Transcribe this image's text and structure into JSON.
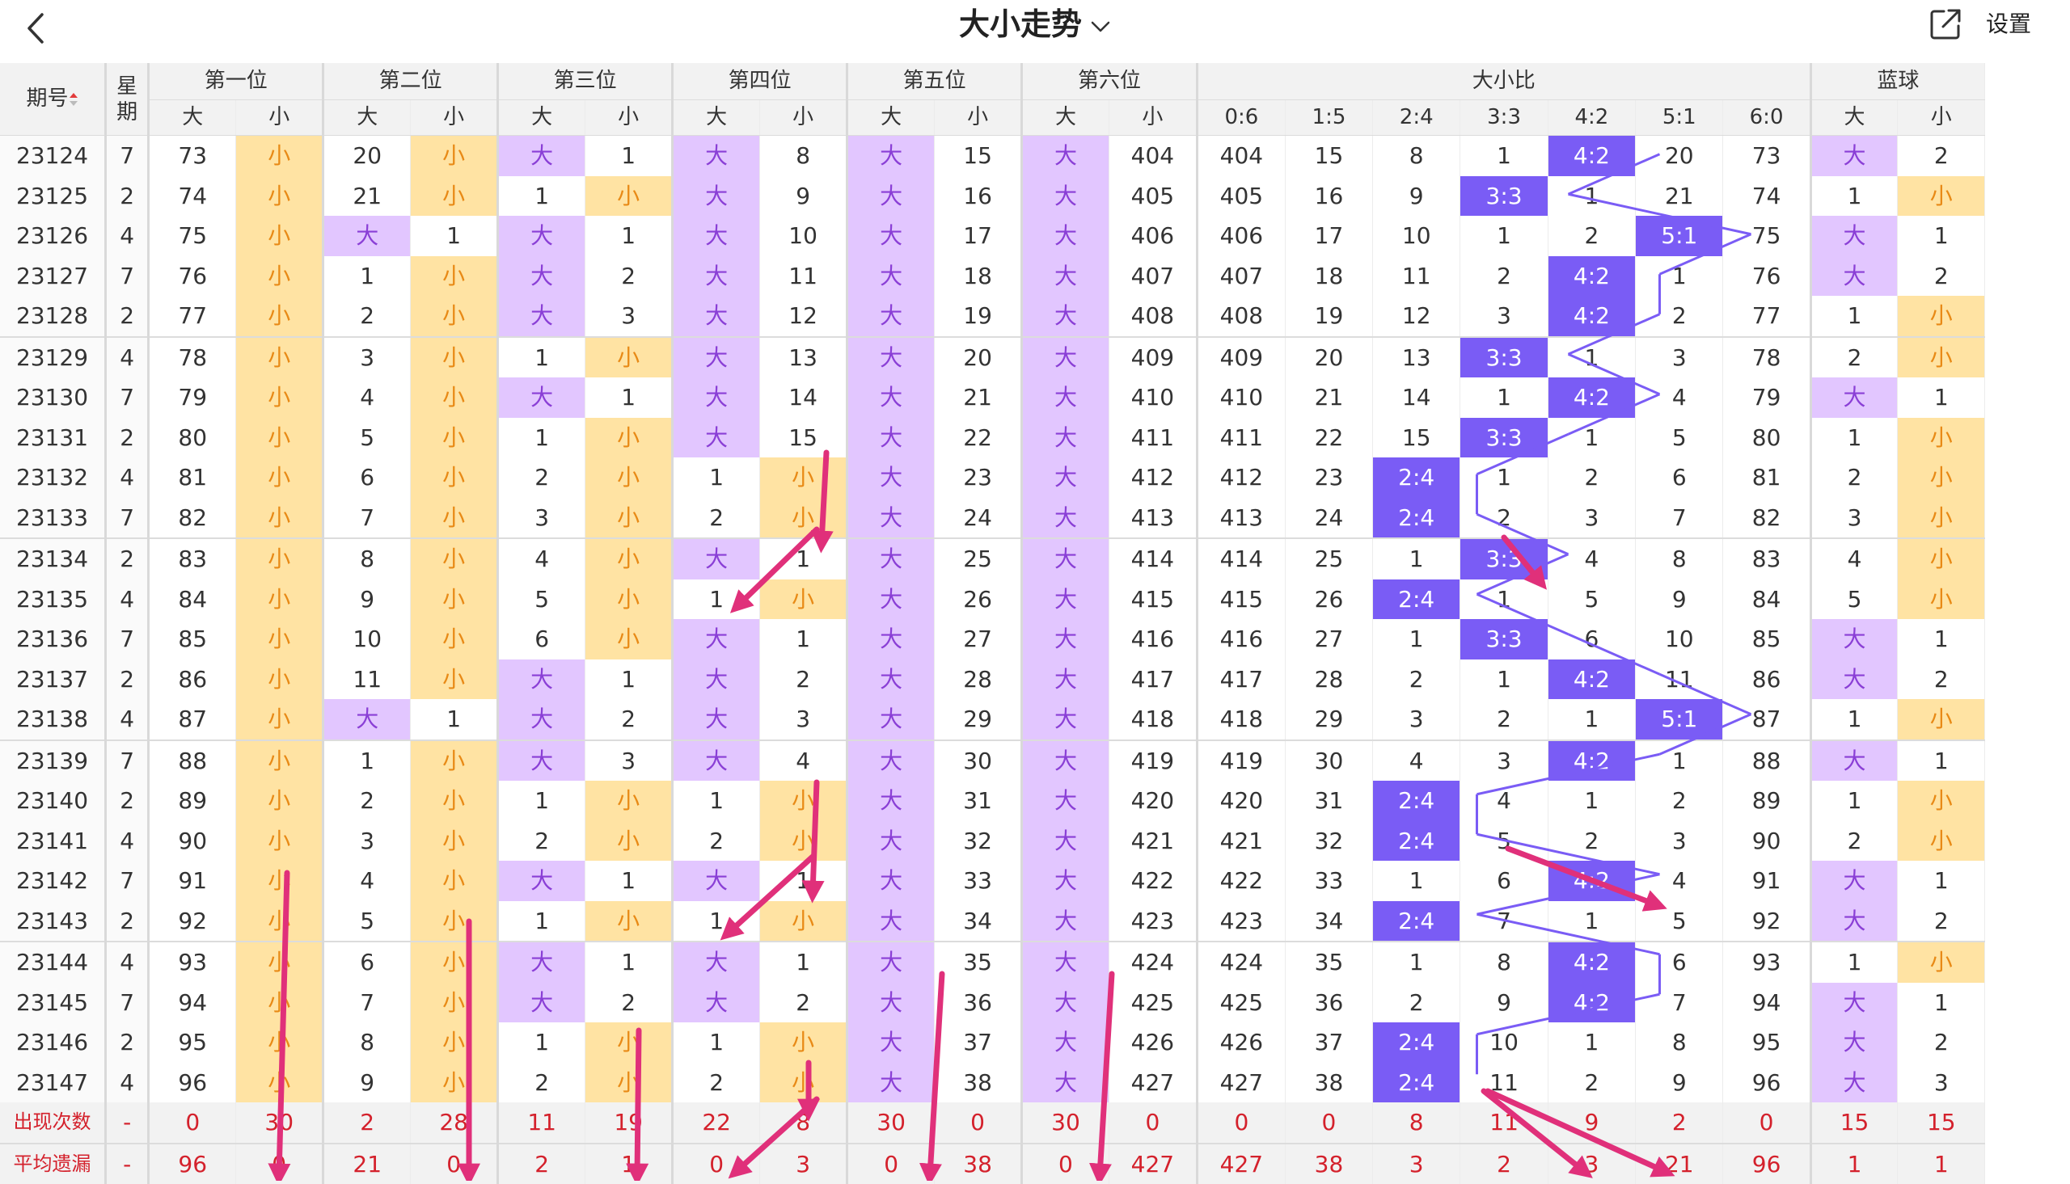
{
  "header": {
    "title": "大小走势",
    "setting_label": "设置"
  },
  "colors": {
    "big": "#e2c6ff",
    "small": "#ffe3a3",
    "hit": "#7a5cf5",
    "stat_red": "#d4212c",
    "arrow": "#e0307a"
  },
  "table": {
    "col_period": "期号",
    "col_week": "星期",
    "positions": [
      "第一位",
      "第二位",
      "第三位",
      "第四位",
      "第五位",
      "第六位"
    ],
    "ratio_group": "大小比",
    "blue_group": "蓝球",
    "big_label": "大",
    "small_label": "小",
    "ratio_cols": [
      "0:6",
      "1:5",
      "2:4",
      "3:3",
      "4:2",
      "5:1",
      "6:0"
    ],
    "rows": [
      {
        "p": "23124",
        "w": "7",
        "pos": [
          "73",
          "S",
          "20",
          "S",
          "B",
          "1",
          "B",
          "8",
          "B",
          "15",
          "B",
          "404"
        ],
        "ratio": [
          "404",
          "15",
          "8",
          "1",
          "4:2",
          "20",
          "73"
        ],
        "blue": [
          "B",
          "2"
        ]
      },
      {
        "p": "23125",
        "w": "2",
        "pos": [
          "74",
          "S",
          "21",
          "S",
          "1",
          "S",
          "B",
          "9",
          "B",
          "16",
          "B",
          "405"
        ],
        "ratio": [
          "405",
          "16",
          "9",
          "3:3",
          "1",
          "21",
          "74"
        ],
        "blue": [
          "1",
          "S"
        ]
      },
      {
        "p": "23126",
        "w": "4",
        "pos": [
          "75",
          "S",
          "B",
          "1",
          "B",
          "1",
          "B",
          "10",
          "B",
          "17",
          "B",
          "406"
        ],
        "ratio": [
          "406",
          "17",
          "10",
          "1",
          "2",
          "5:1",
          "75"
        ],
        "blue": [
          "B",
          "1"
        ]
      },
      {
        "p": "23127",
        "w": "7",
        "pos": [
          "76",
          "S",
          "1",
          "S",
          "B",
          "2",
          "B",
          "11",
          "B",
          "18",
          "B",
          "407"
        ],
        "ratio": [
          "407",
          "18",
          "11",
          "2",
          "4:2",
          "1",
          "76"
        ],
        "blue": [
          "B",
          "2"
        ]
      },
      {
        "p": "23128",
        "w": "2",
        "pos": [
          "77",
          "S",
          "2",
          "S",
          "B",
          "3",
          "B",
          "12",
          "B",
          "19",
          "B",
          "408"
        ],
        "ratio": [
          "408",
          "19",
          "12",
          "3",
          "4:2",
          "2",
          "77"
        ],
        "blue": [
          "1",
          "S"
        ]
      },
      {
        "p": "23129",
        "w": "4",
        "pos": [
          "78",
          "S",
          "3",
          "S",
          "1",
          "S",
          "B",
          "13",
          "B",
          "20",
          "B",
          "409"
        ],
        "ratio": [
          "409",
          "20",
          "13",
          "3:3",
          "1",
          "3",
          "78"
        ],
        "blue": [
          "2",
          "S"
        ]
      },
      {
        "p": "23130",
        "w": "7",
        "pos": [
          "79",
          "S",
          "4",
          "S",
          "B",
          "1",
          "B",
          "14",
          "B",
          "21",
          "B",
          "410"
        ],
        "ratio": [
          "410",
          "21",
          "14",
          "1",
          "4:2",
          "4",
          "79"
        ],
        "blue": [
          "B",
          "1"
        ]
      },
      {
        "p": "23131",
        "w": "2",
        "pos": [
          "80",
          "S",
          "5",
          "S",
          "1",
          "S",
          "B",
          "15",
          "B",
          "22",
          "B",
          "411"
        ],
        "ratio": [
          "411",
          "22",
          "15",
          "3:3",
          "1",
          "5",
          "80"
        ],
        "blue": [
          "1",
          "S"
        ]
      },
      {
        "p": "23132",
        "w": "4",
        "pos": [
          "81",
          "S",
          "6",
          "S",
          "2",
          "S",
          "1",
          "S",
          "B",
          "23",
          "B",
          "412"
        ],
        "ratio": [
          "412",
          "23",
          "2:4",
          "1",
          "2",
          "6",
          "81"
        ],
        "blue": [
          "2",
          "S"
        ]
      },
      {
        "p": "23133",
        "w": "7",
        "pos": [
          "82",
          "S",
          "7",
          "S",
          "3",
          "S",
          "2",
          "S",
          "B",
          "24",
          "B",
          "413"
        ],
        "ratio": [
          "413",
          "24",
          "2:4",
          "2",
          "3",
          "7",
          "82"
        ],
        "blue": [
          "3",
          "S"
        ]
      },
      {
        "p": "23134",
        "w": "2",
        "pos": [
          "83",
          "S",
          "8",
          "S",
          "4",
          "S",
          "B",
          "1",
          "B",
          "25",
          "B",
          "414"
        ],
        "ratio": [
          "414",
          "25",
          "1",
          "3:3",
          "4",
          "8",
          "83"
        ],
        "blue": [
          "4",
          "S"
        ]
      },
      {
        "p": "23135",
        "w": "4",
        "pos": [
          "84",
          "S",
          "9",
          "S",
          "5",
          "S",
          "1",
          "S",
          "B",
          "26",
          "B",
          "415"
        ],
        "ratio": [
          "415",
          "26",
          "2:4",
          "1",
          "5",
          "9",
          "84"
        ],
        "blue": [
          "5",
          "S"
        ]
      },
      {
        "p": "23136",
        "w": "7",
        "pos": [
          "85",
          "S",
          "10",
          "S",
          "6",
          "S",
          "B",
          "1",
          "B",
          "27",
          "B",
          "416"
        ],
        "ratio": [
          "416",
          "27",
          "1",
          "3:3",
          "6",
          "10",
          "85"
        ],
        "blue": [
          "B",
          "1"
        ]
      },
      {
        "p": "23137",
        "w": "2",
        "pos": [
          "86",
          "S",
          "11",
          "S",
          "B",
          "1",
          "B",
          "2",
          "B",
          "28",
          "B",
          "417"
        ],
        "ratio": [
          "417",
          "28",
          "2",
          "1",
          "4:2",
          "11",
          "86"
        ],
        "blue": [
          "B",
          "2"
        ]
      },
      {
        "p": "23138",
        "w": "4",
        "pos": [
          "87",
          "S",
          "B",
          "1",
          "B",
          "2",
          "B",
          "3",
          "B",
          "29",
          "B",
          "418"
        ],
        "ratio": [
          "418",
          "29",
          "3",
          "2",
          "1",
          "5:1",
          "87"
        ],
        "blue": [
          "1",
          "S"
        ]
      },
      {
        "p": "23139",
        "w": "7",
        "pos": [
          "88",
          "S",
          "1",
          "S",
          "B",
          "3",
          "B",
          "4",
          "B",
          "30",
          "B",
          "419"
        ],
        "ratio": [
          "419",
          "30",
          "4",
          "3",
          "4:2",
          "1",
          "88"
        ],
        "blue": [
          "B",
          "1"
        ]
      },
      {
        "p": "23140",
        "w": "2",
        "pos": [
          "89",
          "S",
          "2",
          "S",
          "1",
          "S",
          "1",
          "S",
          "B",
          "31",
          "B",
          "420"
        ],
        "ratio": [
          "420",
          "31",
          "2:4",
          "4",
          "1",
          "2",
          "89"
        ],
        "blue": [
          "1",
          "S"
        ]
      },
      {
        "p": "23141",
        "w": "4",
        "pos": [
          "90",
          "S",
          "3",
          "S",
          "2",
          "S",
          "2",
          "S",
          "B",
          "32",
          "B",
          "421"
        ],
        "ratio": [
          "421",
          "32",
          "2:4",
          "5",
          "2",
          "3",
          "90"
        ],
        "blue": [
          "2",
          "S"
        ]
      },
      {
        "p": "23142",
        "w": "7",
        "pos": [
          "91",
          "S",
          "4",
          "S",
          "B",
          "1",
          "B",
          "1",
          "B",
          "33",
          "B",
          "422"
        ],
        "ratio": [
          "422",
          "33",
          "1",
          "6",
          "4:2",
          "4",
          "91"
        ],
        "blue": [
          "B",
          "1"
        ]
      },
      {
        "p": "23143",
        "w": "2",
        "pos": [
          "92",
          "S",
          "5",
          "S",
          "1",
          "S",
          "1",
          "S",
          "B",
          "34",
          "B",
          "423"
        ],
        "ratio": [
          "423",
          "34",
          "2:4",
          "7",
          "1",
          "5",
          "92"
        ],
        "blue": [
          "B",
          "2"
        ]
      },
      {
        "p": "23144",
        "w": "4",
        "pos": [
          "93",
          "S",
          "6",
          "S",
          "B",
          "1",
          "B",
          "1",
          "B",
          "35",
          "B",
          "424"
        ],
        "ratio": [
          "424",
          "35",
          "1",
          "8",
          "4:2",
          "6",
          "93"
        ],
        "blue": [
          "1",
          "S"
        ]
      },
      {
        "p": "23145",
        "w": "7",
        "pos": [
          "94",
          "S",
          "7",
          "S",
          "B",
          "2",
          "B",
          "2",
          "B",
          "36",
          "B",
          "425"
        ],
        "ratio": [
          "425",
          "36",
          "2",
          "9",
          "4:2",
          "7",
          "94"
        ],
        "blue": [
          "B",
          "1"
        ]
      },
      {
        "p": "23146",
        "w": "2",
        "pos": [
          "95",
          "S",
          "8",
          "S",
          "1",
          "S",
          "1",
          "S",
          "B",
          "37",
          "B",
          "426"
        ],
        "ratio": [
          "426",
          "37",
          "2:4",
          "10",
          "1",
          "8",
          "95"
        ],
        "blue": [
          "B",
          "2"
        ]
      },
      {
        "p": "23147",
        "w": "4",
        "pos": [
          "96",
          "S",
          "9",
          "S",
          "2",
          "S",
          "2",
          "S",
          "B",
          "38",
          "B",
          "427"
        ],
        "ratio": [
          "427",
          "38",
          "2:4",
          "11",
          "2",
          "9",
          "96"
        ],
        "blue": [
          "B",
          "3"
        ]
      }
    ],
    "stats": [
      {
        "label": "出现次数",
        "w": "-",
        "vals": [
          "0",
          "30",
          "2",
          "28",
          "11",
          "19",
          "22",
          "8",
          "30",
          "0",
          "30",
          "0",
          "0",
          "0",
          "8",
          "11",
          "9",
          "2",
          "0",
          "15",
          "15"
        ]
      },
      {
        "label": "平均遗漏",
        "w": "-",
        "vals": [
          "96",
          "0",
          "21",
          "0",
          "2",
          "1",
          "0",
          "3",
          "0",
          "38",
          "0",
          "427",
          "427",
          "38",
          "3",
          "2",
          "3",
          "21",
          "96",
          "1",
          "1"
        ]
      }
    ]
  }
}
